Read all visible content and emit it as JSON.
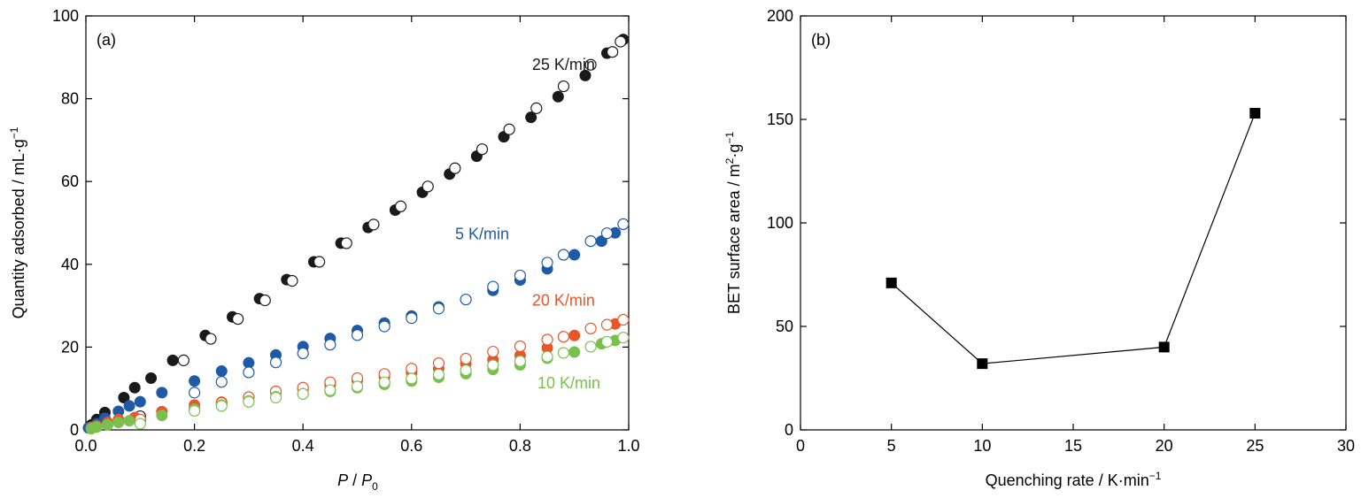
{
  "chart_data": [
    {
      "type": "scatter",
      "panel_label": "(a)",
      "xlabel_main": "P",
      "xlabel_sep": " / ",
      "xlabel_sub_base": "P",
      "xlabel_sub": "0",
      "ylabel_base": "Quantity adsorbed / mL·g",
      "ylabel_sup": "−1",
      "xlim": [
        0,
        1.0
      ],
      "ylim": [
        0,
        100
      ],
      "xticks": [
        "0.0",
        "0.2",
        "0.4",
        "0.6",
        "0.8",
        "1.0"
      ],
      "xtick_values": [
        0,
        0.2,
        0.4,
        0.6,
        0.8,
        1.0
      ],
      "yticks": [
        "0",
        "20",
        "40",
        "60",
        "80",
        "100"
      ],
      "ytick_values": [
        0,
        20,
        40,
        60,
        80,
        100
      ],
      "grid": false,
      "annotations": [
        {
          "text": "25 K/min",
          "color": "#1a1a1a",
          "x": 0.88,
          "y": 87
        },
        {
          "text": "5 K/min",
          "color": "#1f5aa6",
          "x": 0.73,
          "y": 46
        },
        {
          "text": "20 K/min",
          "color": "#e8562a",
          "x": 0.88,
          "y": 30
        },
        {
          "text": "10 K/min",
          "color": "#7ac04f",
          "x": 0.89,
          "y": 10
        }
      ],
      "series": [
        {
          "color": "#1a1a1a",
          "adsorption": {
            "x": [
              0.005,
              0.01,
              0.02,
              0.035,
              0.07,
              0.09,
              0.12,
              0.16,
              0.22,
              0.27,
              0.32,
              0.37,
              0.42,
              0.47,
              0.52,
              0.57,
              0.62,
              0.67,
              0.72,
              0.77,
              0.82,
              0.87,
              0.92,
              0.96,
              0.99
            ],
            "y": [
              0.5,
              1.2,
              2.5,
              4.2,
              7.8,
              10.2,
              12.5,
              16.8,
              22.8,
              27.3,
              31.7,
              36.3,
              40.6,
              45.1,
              48.9,
              53.1,
              57.4,
              61.8,
              66.1,
              70.8,
              75.5,
              80.5,
              85.6,
              91,
              94.3
            ]
          },
          "desorption": {
            "x": [
              0.1,
              0.18,
              0.23,
              0.28,
              0.33,
              0.38,
              0.43,
              0.48,
              0.53,
              0.58,
              0.63,
              0.68,
              0.73,
              0.78,
              0.83,
              0.88,
              0.93,
              0.97,
              0.985
            ],
            "y": [
              3.3,
              16.8,
              22,
              26.8,
              31.3,
              36,
              40.6,
              45.1,
              49.6,
              54,
              58.8,
              63.2,
              67.8,
              72.6,
              77.7,
              83,
              88.2,
              91.3,
              93.8
            ]
          }
        },
        {
          "color": "#1f5aa6",
          "adsorption": {
            "x": [
              0.005,
              0.02,
              0.035,
              0.06,
              0.08,
              0.1,
              0.14,
              0.2,
              0.25,
              0.3,
              0.35,
              0.4,
              0.45,
              0.5,
              0.55,
              0.6,
              0.65,
              0.75,
              0.8,
              0.85,
              0.9,
              0.95,
              0.975
            ],
            "y": [
              0.5,
              1.5,
              2.8,
              4.5,
              5.8,
              6.8,
              9,
              11.8,
              14.2,
              16.2,
              18.1,
              20.1,
              22.1,
              24,
              25.8,
              27.5,
              29.7,
              33.7,
              36.2,
              38.9,
              42.3,
              45.6,
              47.6
            ]
          },
          "desorption": {
            "x": [
              0.1,
              0.2,
              0.25,
              0.3,
              0.35,
              0.4,
              0.45,
              0.5,
              0.55,
              0.6,
              0.65,
              0.7,
              0.75,
              0.8,
              0.85,
              0.88,
              0.93,
              0.96,
              0.99
            ],
            "y": [
              2.2,
              9,
              11.6,
              13.9,
              16.3,
              18.5,
              20.6,
              22.9,
              25,
              27,
              29.3,
              31.5,
              34.6,
              37.3,
              40.4,
              42.3,
              45.6,
              47.5,
              49.7
            ]
          }
        },
        {
          "color": "#e8562a",
          "adsorption": {
            "x": [
              0.01,
              0.02,
              0.04,
              0.06,
              0.09,
              0.14,
              0.2,
              0.25,
              0.3,
              0.35,
              0.4,
              0.45,
              0.5,
              0.55,
              0.6,
              0.65,
              0.7,
              0.75,
              0.8,
              0.85,
              0.9,
              0.975
            ],
            "y": [
              0.6,
              1.0,
              1.8,
              2.5,
              3.0,
              4.4,
              6.0,
              6.7,
              7.9,
              9.0,
              9.8,
              10.8,
              11.9,
              12.8,
              13.8,
              14.8,
              16.0,
              16.9,
              18.0,
              19.8,
              22.8,
              25.6
            ]
          },
          "desorption": {
            "x": [
              0.1,
              0.2,
              0.25,
              0.3,
              0.35,
              0.4,
              0.45,
              0.5,
              0.55,
              0.6,
              0.65,
              0.7,
              0.75,
              0.8,
              0.85,
              0.88,
              0.93,
              0.96,
              0.99
            ],
            "y": [
              2.5,
              5.2,
              6.5,
              7.9,
              9.3,
              10.2,
              11.5,
              12.5,
              13.5,
              14.8,
              16.1,
              17.2,
              18.9,
              20.2,
              21.8,
              22.5,
              24.5,
              25.4,
              26.6
            ]
          }
        },
        {
          "color": "#7ac04f",
          "adsorption": {
            "x": [
              0.01,
              0.02,
              0.04,
              0.06,
              0.08,
              0.14,
              0.2,
              0.25,
              0.3,
              0.35,
              0.4,
              0.45,
              0.5,
              0.55,
              0.6,
              0.65,
              0.7,
              0.75,
              0.8,
              0.85,
              0.9,
              0.95,
              0.975
            ],
            "y": [
              0.3,
              0.7,
              1.2,
              1.8,
              2.2,
              3.5,
              5.0,
              6.0,
              7.0,
              8.0,
              8.7,
              9.3,
              10.2,
              11.0,
              11.8,
              12.7,
              13.6,
              14.6,
              15.7,
              17.3,
              18.8,
              20.8,
              21.6
            ]
          },
          "desorption": {
            "x": [
              0.1,
              0.2,
              0.25,
              0.3,
              0.35,
              0.4,
              0.45,
              0.5,
              0.55,
              0.6,
              0.65,
              0.7,
              0.75,
              0.8,
              0.85,
              0.88,
              0.93,
              0.96,
              0.99
            ],
            "y": [
              1.5,
              4.6,
              5.8,
              6.8,
              7.8,
              8.7,
              9.6,
              10.5,
              11.5,
              12.4,
              13.4,
              14.4,
              15.6,
              16.6,
              17.7,
              18.6,
              20.1,
              21.3,
              22.3
            ]
          }
        }
      ]
    },
    {
      "type": "line",
      "panel_label": "(b)",
      "xlabel_base": "Quenching rate / K·min",
      "xlabel_sup": "−1",
      "ylabel_base": "BET surface area / m",
      "ylabel_sup1": "2",
      "ylabel_mid": "·g",
      "ylabel_sup2": "−1",
      "xlim": [
        0,
        30
      ],
      "ylim": [
        0,
        200
      ],
      "xticks": [
        "0",
        "5",
        "10",
        "15",
        "20",
        "25",
        "30"
      ],
      "xtick_values": [
        0,
        5,
        10,
        15,
        20,
        25,
        30
      ],
      "yticks": [
        "0",
        "50",
        "100",
        "150",
        "200"
      ],
      "ytick_values": [
        0,
        50,
        100,
        150,
        200
      ],
      "grid": false,
      "series": [
        {
          "color": "#000000",
          "marker": "square",
          "x": [
            5,
            10,
            20,
            25
          ],
          "y": [
            71,
            32,
            40,
            153
          ]
        }
      ]
    }
  ]
}
